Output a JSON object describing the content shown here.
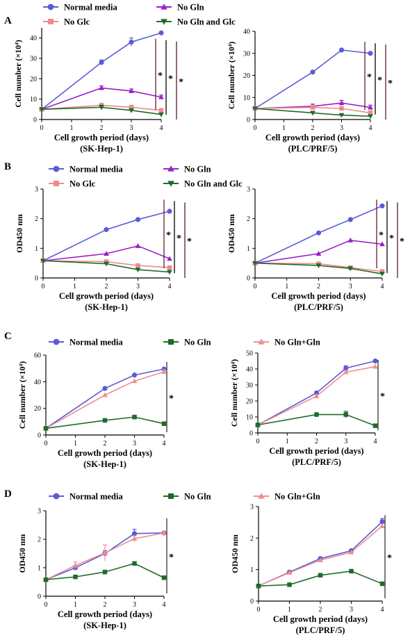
{
  "colors": {
    "normal": "#5b5bd6",
    "noglc": "#ef8a8a",
    "nogln": "#9a1fc9",
    "noglnglc": "#1f6b2a",
    "glnrescue": "#ef8f8f",
    "sigA": "#6a1a28",
    "sigB": "#000000",
    "sigC": "#5a1a1a"
  },
  "panels": [
    {
      "label": "A",
      "legend": [
        {
          "key": "normal",
          "name": "Normal media",
          "marker": "circle"
        },
        {
          "key": "noglc",
          "name": "No Glc",
          "marker": "square"
        },
        {
          "key": "nogln",
          "name": "No Gln",
          "marker": "triangle-up"
        },
        {
          "key": "noglnglc",
          "name": "No Gln and Glc",
          "marker": "triangle-down"
        }
      ]
    },
    {
      "label": "B",
      "legend": [
        {
          "key": "normal",
          "name": "Normal media",
          "marker": "circle"
        },
        {
          "key": "noglc",
          "name": "No Glc",
          "marker": "square"
        },
        {
          "key": "nogln",
          "name": "No Gln",
          "marker": "triangle-up"
        },
        {
          "key": "noglnglc",
          "name": "No Gln and Glc",
          "marker": "triangle-down"
        }
      ]
    },
    {
      "label": "C",
      "legend": [
        {
          "key": "normal",
          "name": "Normal media",
          "marker": "circle"
        },
        {
          "key": "noglnglc",
          "name": "No Gln",
          "marker": "square"
        },
        {
          "key": "glnrescue",
          "name": "No Gln+Gln",
          "marker": "triangle-up"
        }
      ]
    },
    {
      "label": "D",
      "legend": [
        {
          "key": "normal",
          "name": "Normal media",
          "marker": "circle"
        },
        {
          "key": "noglnglc",
          "name": "No Gln",
          "marker": "square"
        },
        {
          "key": "glnrescue",
          "name": "No Gln+Gln",
          "marker": "triangle-up"
        }
      ]
    }
  ],
  "chart_data": [
    {
      "type": "line",
      "panel": "A",
      "ylabel": "Cell number (×10⁴)",
      "xlabel": "Cell growth period (days)",
      "subtitle": "(SK-Hep-1)",
      "x": [
        0,
        2,
        3,
        4
      ],
      "ylim": [
        0,
        45
      ],
      "yticks": [
        0,
        10,
        20,
        30,
        40
      ],
      "xticks": [
        0,
        1,
        2,
        3,
        4
      ],
      "series": [
        {
          "key": "normal",
          "name": "Normal media",
          "values": [
            5,
            28,
            38,
            42.5
          ],
          "err": [
            0,
            1.2,
            2,
            0
          ]
        },
        {
          "key": "nogln",
          "name": "No Gln",
          "values": [
            5,
            15.5,
            14,
            11
          ],
          "err": [
            0,
            1,
            1,
            1
          ]
        },
        {
          "key": "noglc",
          "name": "No Glc",
          "values": [
            5,
            7,
            6,
            4.5
          ],
          "err": [
            0,
            1,
            1,
            0.5
          ]
        },
        {
          "key": "noglnglc",
          "name": "No Gln and Glc",
          "values": [
            5,
            6,
            4.5,
            2.5
          ],
          "err": [
            0,
            1,
            0.5,
            0.5
          ]
        }
      ],
      "significance": [
        "*",
        "*",
        "*"
      ]
    },
    {
      "type": "line",
      "panel": "A",
      "ylabel": "Cell number (×10⁴)",
      "xlabel": "Cell growth period (days)",
      "subtitle": "(PLC/PRF/5)",
      "x": [
        0,
        2,
        3,
        4
      ],
      "ylim": [
        0,
        40
      ],
      "yticks": [
        0,
        10,
        20,
        30,
        40
      ],
      "xticks": [
        0,
        1,
        2,
        3,
        4
      ],
      "series": [
        {
          "key": "normal",
          "name": "Normal media",
          "values": [
            5,
            21.5,
            31.5,
            30
          ],
          "err": [
            0,
            0,
            0,
            0
          ]
        },
        {
          "key": "nogln",
          "name": "No Gln",
          "values": [
            5,
            6,
            7.5,
            5.5
          ],
          "err": [
            0,
            1,
            1.2,
            1
          ]
        },
        {
          "key": "noglc",
          "name": "No Glc",
          "values": [
            5,
            5.5,
            5,
            3
          ],
          "err": [
            0,
            1,
            0.8,
            1
          ]
        },
        {
          "key": "noglnglc",
          "name": "No Gln and Glc",
          "values": [
            5,
            3,
            2,
            1.5
          ],
          "err": [
            0,
            0.5,
            0.5,
            0.5
          ]
        }
      ],
      "significance": [
        "*",
        "*",
        "*"
      ]
    },
    {
      "type": "line",
      "panel": "B",
      "ylabel": "OD450 nm",
      "xlabel": "Cell growth period (days)",
      "subtitle": "(SK-Hep-1)",
      "x": [
        0,
        2,
        3,
        4
      ],
      "ylim": [
        0,
        3
      ],
      "yticks": [
        0,
        1,
        2,
        3
      ],
      "xticks": [
        0,
        1,
        2,
        3,
        4
      ],
      "series": [
        {
          "key": "normal",
          "name": "Normal media",
          "values": [
            0.58,
            1.63,
            1.97,
            2.25
          ],
          "err": [
            0,
            0,
            0,
            0
          ]
        },
        {
          "key": "nogln",
          "name": "No Gln",
          "values": [
            0.58,
            0.82,
            1.08,
            0.65
          ],
          "err": [
            0,
            0,
            0,
            0
          ]
        },
        {
          "key": "noglc",
          "name": "No Glc",
          "values": [
            0.58,
            0.55,
            0.42,
            0.35
          ],
          "err": [
            0,
            0,
            0,
            0
          ]
        },
        {
          "key": "noglnglc",
          "name": "No Gln and Glc",
          "values": [
            0.58,
            0.48,
            0.28,
            0.2
          ],
          "err": [
            0,
            0,
            0,
            0
          ]
        }
      ],
      "significance": [
        "*",
        "*",
        "*"
      ]
    },
    {
      "type": "line",
      "panel": "B",
      "ylabel": "OD450 nm",
      "xlabel": "Cell growth period (days)",
      "subtitle": "(PLC/PRF/5)",
      "x": [
        0,
        2,
        3,
        4
      ],
      "ylim": [
        0,
        3
      ],
      "yticks": [
        0,
        1,
        2,
        3
      ],
      "xticks": [
        0,
        1,
        2,
        3,
        4
      ],
      "series": [
        {
          "key": "normal",
          "name": "Normal media",
          "values": [
            0.5,
            1.52,
            1.97,
            2.43
          ],
          "err": [
            0,
            0,
            0,
            0
          ]
        },
        {
          "key": "nogln",
          "name": "No Gln",
          "values": [
            0.5,
            0.82,
            1.27,
            1.14
          ],
          "err": [
            0,
            0,
            0,
            0
          ]
        },
        {
          "key": "noglc",
          "name": "No Glc",
          "values": [
            0.5,
            0.48,
            0.35,
            0.22
          ],
          "err": [
            0,
            0,
            0,
            0
          ]
        },
        {
          "key": "noglnglc",
          "name": "No Gln and Glc",
          "values": [
            0.5,
            0.42,
            0.32,
            0.14
          ],
          "err": [
            0,
            0,
            0,
            0
          ]
        }
      ],
      "significance": [
        "*",
        "*",
        "*"
      ]
    },
    {
      "type": "line",
      "panel": "C",
      "ylabel": "Cell number (×10⁴)",
      "xlabel": "Cell growth period (days)",
      "subtitle": "(SK-Hep-1)",
      "x": [
        0,
        2,
        3,
        4
      ],
      "ylim": [
        0,
        60
      ],
      "yticks": [
        0,
        20,
        40,
        60
      ],
      "xticks": [
        0,
        1,
        2,
        3,
        4
      ],
      "series": [
        {
          "key": "normal",
          "name": "Normal media",
          "values": [
            5,
            35,
            45,
            49.5
          ],
          "err": [
            0,
            0,
            0,
            0
          ]
        },
        {
          "key": "glnrescue",
          "name": "No Gln+Gln",
          "values": [
            5,
            30,
            40.5,
            47.5
          ],
          "err": [
            0,
            0,
            0,
            1.5
          ]
        },
        {
          "key": "noglnglc",
          "name": "No Gln",
          "values": [
            5,
            11,
            13.5,
            8.5
          ],
          "err": [
            0,
            0,
            0,
            0
          ]
        }
      ],
      "significance": [
        "*"
      ]
    },
    {
      "type": "line",
      "panel": "C",
      "ylabel": "Cell number (×10⁴)",
      "xlabel": "Cell growth period (days)",
      "subtitle": "(PLC/PRF/5)",
      "x": [
        0,
        2,
        3,
        4
      ],
      "ylim": [
        0,
        50
      ],
      "yticks": [
        0,
        10,
        20,
        30,
        40,
        50
      ],
      "xticks": [
        0,
        1,
        2,
        3,
        4
      ],
      "series": [
        {
          "key": "normal",
          "name": "Normal media",
          "values": [
            5,
            25,
            40.5,
            45
          ],
          "err": [
            0,
            1,
            1.5,
            0
          ]
        },
        {
          "key": "glnrescue",
          "name": "No Gln+Gln",
          "values": [
            5,
            23,
            38,
            41.5
          ],
          "err": [
            0,
            1,
            1,
            0
          ]
        },
        {
          "key": "noglnglc",
          "name": "No Gln",
          "values": [
            5,
            11.5,
            11.5,
            4.5
          ],
          "err": [
            0,
            0,
            2,
            0
          ]
        }
      ],
      "significance": [
        "*"
      ]
    },
    {
      "type": "line",
      "panel": "D",
      "ylabel": "OD450 nm",
      "xlabel": "Cell growth period (days)",
      "subtitle": "(SK-Hep-1)",
      "x": [
        0,
        1,
        2,
        3,
        4
      ],
      "ylim": [
        0,
        3
      ],
      "yticks": [
        0,
        1,
        2,
        3
      ],
      "xticks": [
        0,
        1,
        2,
        3,
        4
      ],
      "series": [
        {
          "key": "normal",
          "name": "Normal media",
          "values": [
            0.58,
            1.0,
            1.5,
            2.2,
            2.22
          ],
          "err": [
            0,
            0.08,
            0.1,
            0.15,
            0.06
          ]
        },
        {
          "key": "glnrescue",
          "name": "No Gln+Gln",
          "values": [
            0.58,
            1.08,
            1.52,
            2.02,
            2.22
          ],
          "err": [
            0,
            0.12,
            0.28,
            0.1,
            0.05
          ]
        },
        {
          "key": "noglnglc",
          "name": "No Gln",
          "values": [
            0.58,
            0.68,
            0.85,
            1.15,
            0.65
          ],
          "err": [
            0,
            0,
            0,
            0,
            0
          ]
        }
      ],
      "significance": [
        "*"
      ]
    },
    {
      "type": "line",
      "panel": "D",
      "ylabel": "OD450 nm",
      "xlabel": "Cell growth period (days)",
      "subtitle": "(PLC/PRF/5)",
      "x": [
        0,
        1,
        2,
        3,
        4
      ],
      "ylim": [
        0,
        3
      ],
      "yticks": [
        0,
        1,
        2,
        3
      ],
      "xticks": [
        0,
        1,
        2,
        3,
        4
      ],
      "series": [
        {
          "key": "normal",
          "name": "Normal media",
          "values": [
            0.48,
            0.92,
            1.35,
            1.6,
            2.52
          ],
          "err": [
            0,
            0,
            0,
            0,
            0.1
          ]
        },
        {
          "key": "glnrescue",
          "name": "No Gln+Gln",
          "values": [
            0.48,
            0.9,
            1.3,
            1.55,
            2.38
          ],
          "err": [
            0,
            0,
            0,
            0,
            0
          ]
        },
        {
          "key": "noglnglc",
          "name": "No Gln",
          "values": [
            0.48,
            0.52,
            0.82,
            0.95,
            0.55
          ],
          "err": [
            0,
            0,
            0,
            0.05,
            0
          ]
        }
      ],
      "significance": [
        "*"
      ]
    }
  ]
}
